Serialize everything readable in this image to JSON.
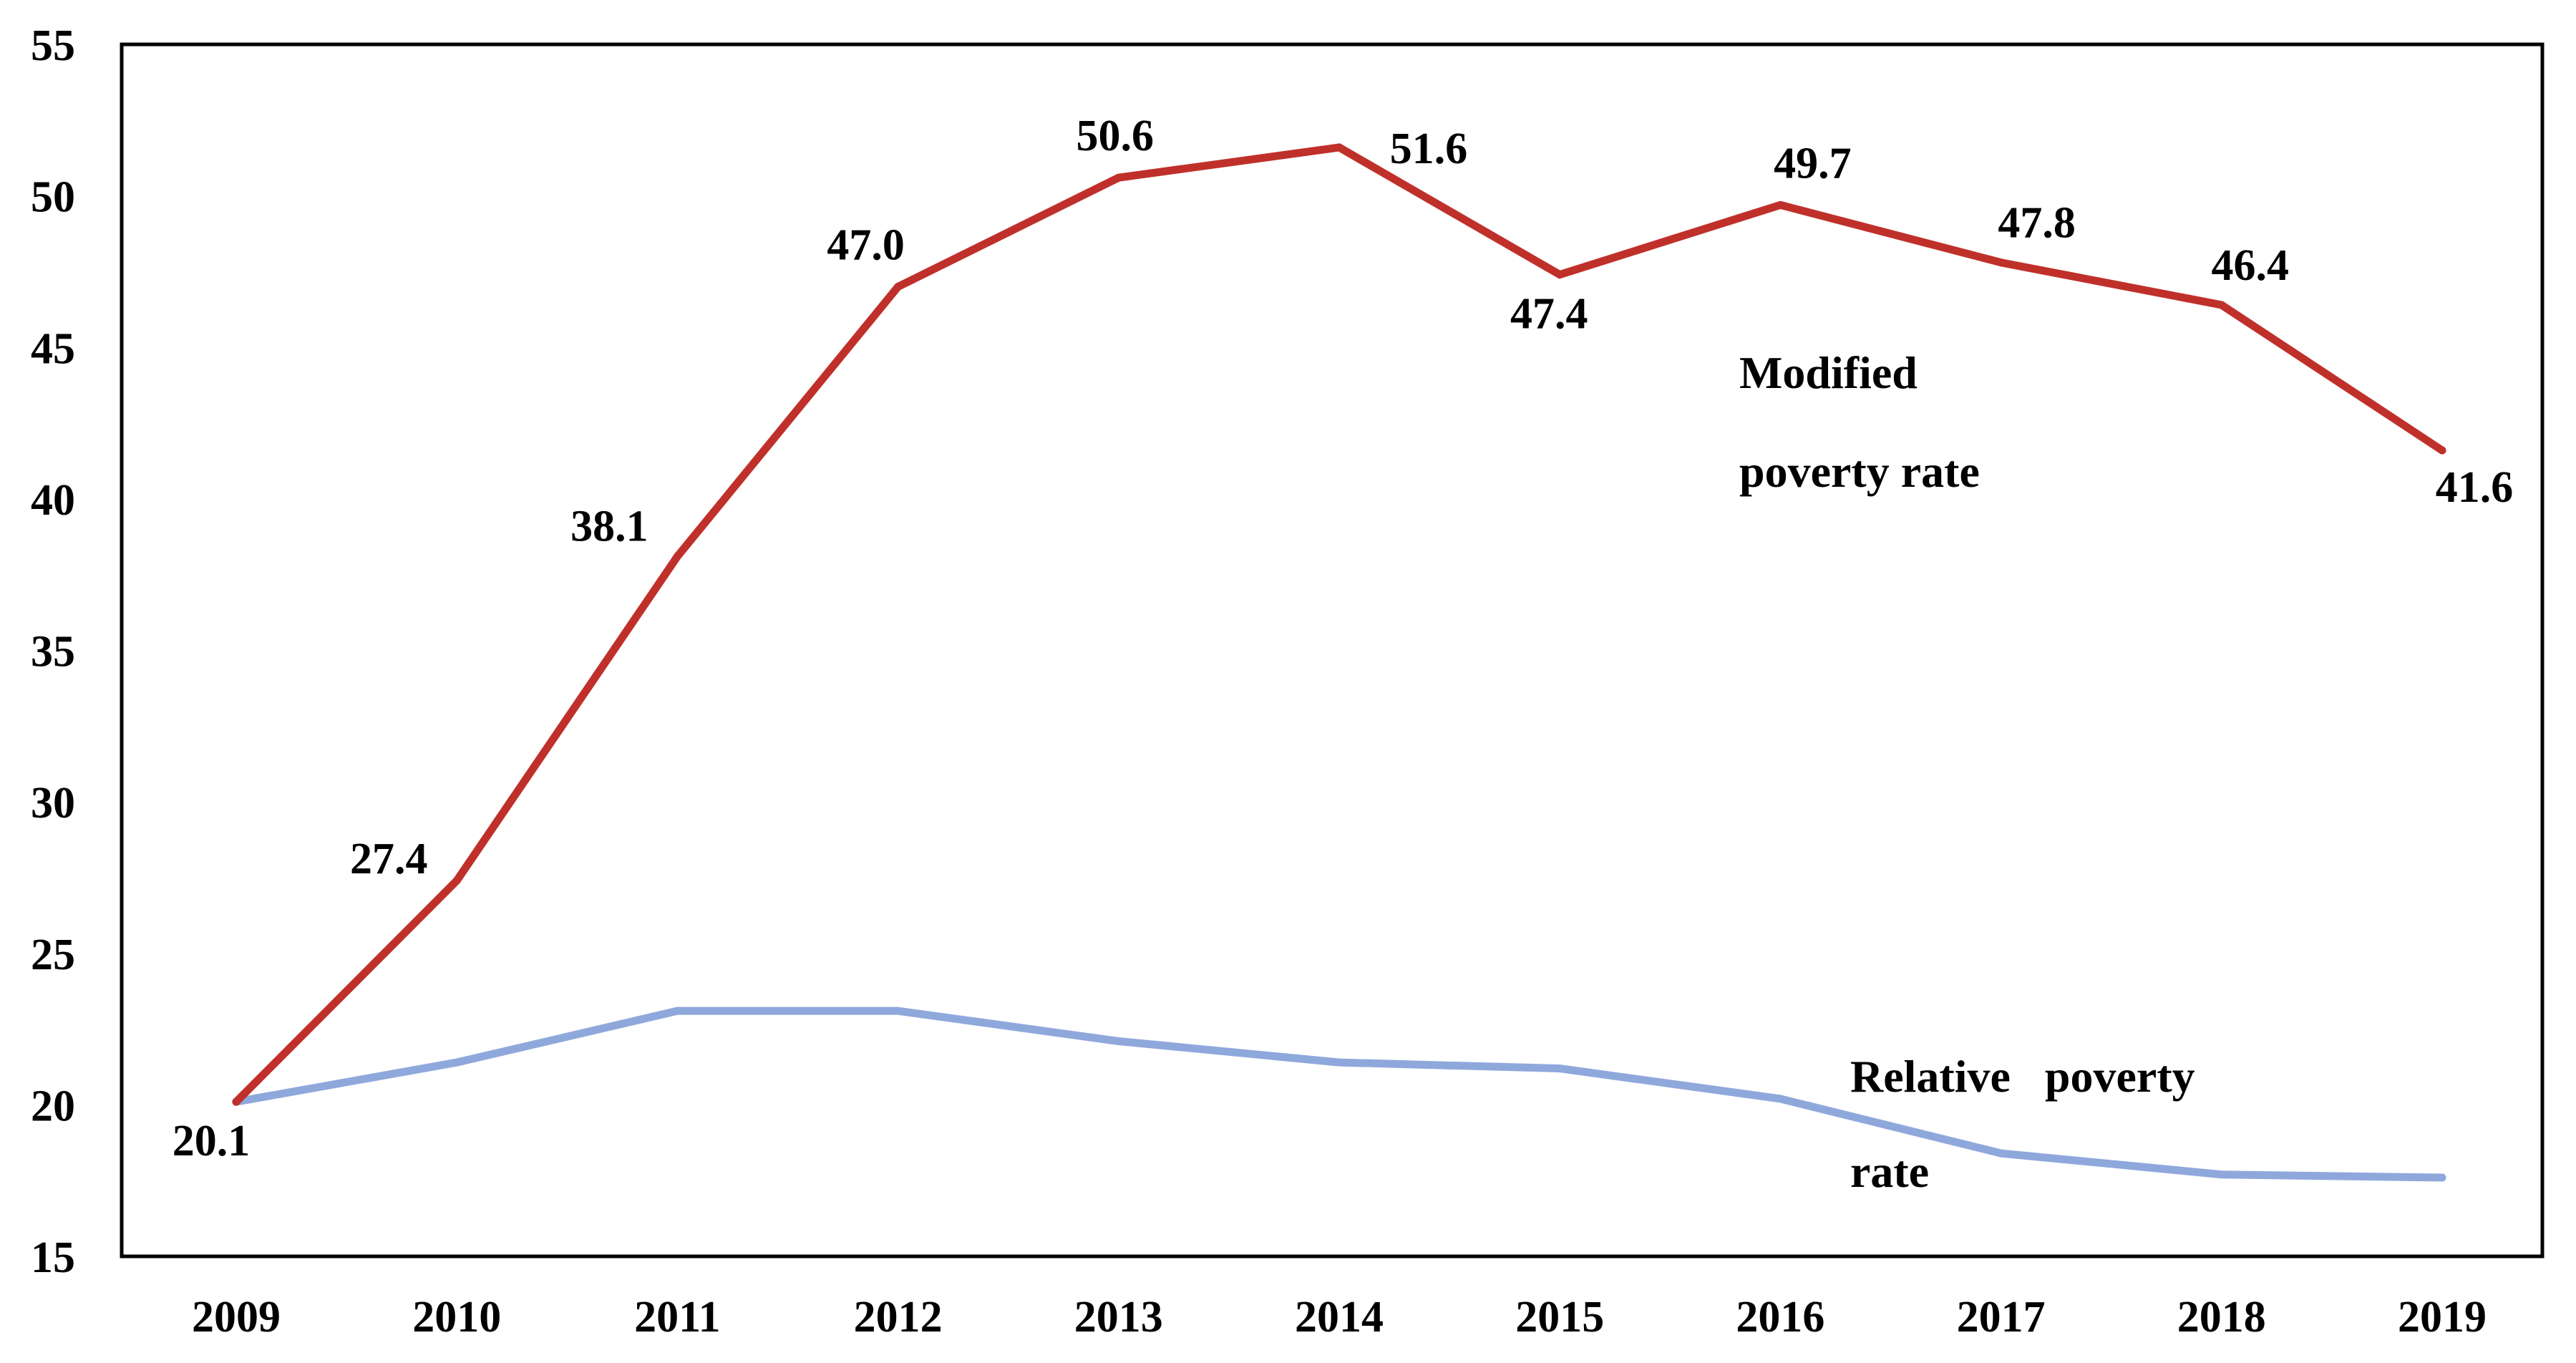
{
  "chart_data": {
    "type": "line",
    "title": "",
    "xlabel": "",
    "ylabel": "",
    "ylim": [
      15,
      55
    ],
    "yticks": [
      "15",
      "20",
      "25",
      "30",
      "35",
      "40",
      "45",
      "50",
      "55"
    ],
    "grid": false,
    "legend": "none",
    "categories": [
      "2009",
      "2010",
      "2011",
      "2012",
      "2013",
      "2014",
      "2015",
      "2016",
      "2017",
      "2018",
      "2019"
    ],
    "series": [
      {
        "name": "Modified poverty rate",
        "color": "#c0302a",
        "values": [
          20.1,
          27.4,
          38.1,
          47.0,
          50.6,
          51.6,
          47.4,
          49.7,
          47.8,
          46.4,
          41.6
        ],
        "data_labels": [
          "20.1",
          "27.4",
          "38.1",
          "47.0",
          "50.6",
          "51.6",
          "47.4",
          "49.7",
          "47.8",
          "46.4",
          "41.6"
        ]
      },
      {
        "name": "Relative poverty rate",
        "color": "#8fa8dc",
        "values": [
          20.1,
          21.4,
          23.1,
          23.1,
          22.1,
          21.4,
          21.2,
          20.2,
          18.4,
          17.7,
          17.6
        ]
      }
    ],
    "annotations": {
      "modified": [
        "Modified",
        "poverty rate"
      ],
      "relative": [
        "Relative   poverty",
        "rate"
      ]
    }
  }
}
